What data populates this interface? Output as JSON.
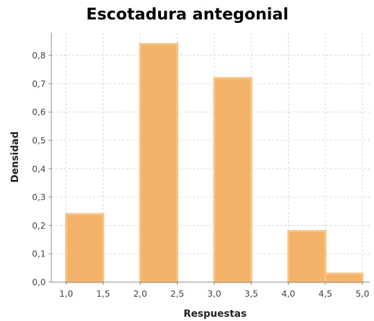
{
  "chart_data": {
    "type": "bar",
    "title": "Escotadura antegonial",
    "xlabel": "Respuestas",
    "ylabel": "Densidad",
    "xlim": [
      0.8,
      5.1
    ],
    "ylim": [
      0,
      0.88
    ],
    "x_ticks": [
      "1,0",
      "1,5",
      "2,0",
      "2,5",
      "3,0",
      "3,5",
      "4,0",
      "4,5",
      "5,0"
    ],
    "y_ticks": [
      "0,0",
      "0,1",
      "0,2",
      "0,3",
      "0,4",
      "0,5",
      "0,6",
      "0,7",
      "0,8"
    ],
    "bins": [
      {
        "from": 1.0,
        "to": 1.5,
        "value": 0.24
      },
      {
        "from": 2.0,
        "to": 2.5,
        "value": 0.84
      },
      {
        "from": 3.0,
        "to": 3.5,
        "value": 0.72
      },
      {
        "from": 4.0,
        "to": 4.5,
        "value": 0.18
      },
      {
        "from": 4.5,
        "to": 5.0,
        "value": 0.03
      }
    ],
    "grid": true,
    "bar_color": "#f3b267",
    "bar_edge_color": "#f7c487"
  }
}
